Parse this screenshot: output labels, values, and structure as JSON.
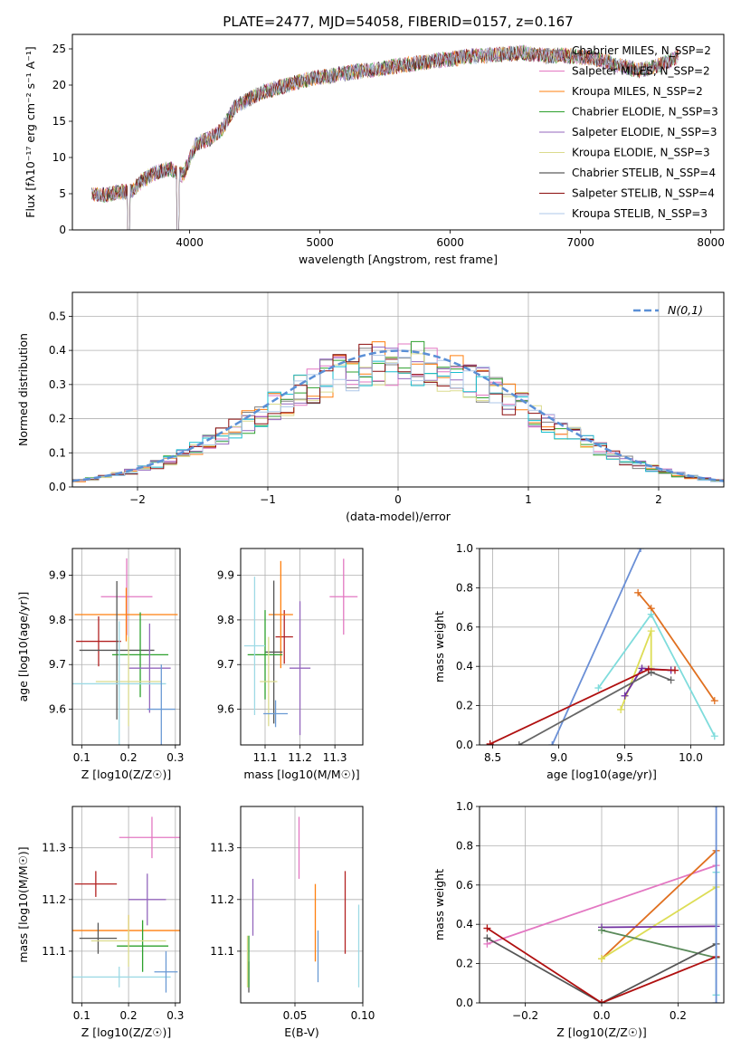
{
  "figure_title": "PLATE=2477, MJD=54058, FIBERID=0157, z=0.167",
  "model_colors": [
    "#808080",
    "#e377c2",
    "#ff7f0e",
    "#2ca02c",
    "#9467bd",
    "#dbdb8d",
    "#17becf",
    "#8c0c0c",
    "#aec7e8"
  ],
  "chart_data": [
    {
      "id": "spectrum",
      "type": "line",
      "xlabel": "wavelength [Angstrom, rest frame]",
      "ylabel": "Flux [fλ10⁻¹⁷ erg cm⁻² s⁻¹ A⁻¹]",
      "xlim": [
        3100,
        8100
      ],
      "ylim": [
        0,
        27
      ],
      "xticks": [
        "4000",
        "5000",
        "6000",
        "7000",
        "8000"
      ],
      "yticks": [
        "0",
        "5",
        "10",
        "15",
        "20",
        "25"
      ],
      "grid": false,
      "legend_position": "upper-right",
      "continuum": {
        "x": [
          3250,
          3350,
          3450,
          3550,
          3650,
          3750,
          3850,
          3950,
          4050,
          4150,
          4250,
          4350,
          4450,
          4550,
          4650,
          4750,
          4850,
          4950,
          5050,
          5150,
          5250,
          5350,
          5450,
          5550,
          5650,
          5750,
          5850,
          5950,
          6050,
          6150,
          6250,
          6350,
          6450,
          6550,
          6650,
          6750,
          6850,
          6950,
          7050,
          7150,
          7250,
          7350,
          7450,
          7550,
          7650,
          7750
        ],
        "y": [
          5,
          4.8,
          5.2,
          5.3,
          7,
          8,
          8.5,
          7.5,
          12,
          12.5,
          14,
          17,
          18,
          19,
          19.5,
          20,
          20.5,
          21,
          21.2,
          21.5,
          21.8,
          22,
          22.2,
          22.5,
          22.8,
          23,
          23.3,
          23.5,
          23.7,
          24,
          24,
          24.2,
          24.3,
          24.5,
          24.2,
          24,
          24.1,
          24,
          23.8,
          23.5,
          23,
          22.5,
          22,
          22.5,
          23,
          24
        ]
      },
      "series": [
        {
          "name": "Chabrier MILES, N_SSP=2",
          "color": "#808080"
        },
        {
          "name": "Salpeter MILES, N_SSP=2",
          "color": "#e377c2"
        },
        {
          "name": "Kroupa MILES, N_SSP=2",
          "color": "#ff7f0e"
        },
        {
          "name": "Chabrier ELODIE, N_SSP=3",
          "color": "#2ca02c"
        },
        {
          "name": "Salpeter ELODIE, N_SSP=3",
          "color": "#9467bd"
        },
        {
          "name": "Kroupa ELODIE, N_SSP=3",
          "color": "#dbdb8d"
        },
        {
          "name": "Chabrier STELIB, N_SSP=4",
          "color": "#333333"
        },
        {
          "name": "Salpeter STELIB, N_SSP=4",
          "color": "#8c0c0c"
        },
        {
          "name": "Kroupa STELIB, N_SSP=3",
          "color": "#aec7e8"
        }
      ]
    },
    {
      "id": "residuals",
      "type": "line",
      "xlabel": "(data-model)/error",
      "ylabel": "Normed distribution",
      "xlim": [
        -2.5,
        2.5
      ],
      "ylim": [
        0,
        0.57
      ],
      "xticks": [
        "−2",
        "−1",
        "0",
        "1",
        "2"
      ],
      "yticks": [
        "0.0",
        "0.1",
        "0.2",
        "0.3",
        "0.4",
        "0.5"
      ],
      "grid": true,
      "legend_position": "upper-right",
      "reference": {
        "name": "N(0,1)",
        "color": "#5a8fd6"
      },
      "bin_width": 0.1
    },
    {
      "id": "age-vs-Z",
      "type": "scatter",
      "xlabel": "Z [log10(Z/Z☉)]",
      "ylabel": "age  [log10(age/yr)]",
      "xlim": [
        0.08,
        0.31
      ],
      "ylim": [
        9.52,
        9.96
      ],
      "xticks": [
        "0.1",
        "0.2",
        "0.3"
      ],
      "yticks": [
        "9.6",
        "9.7",
        "9.8",
        "9.9"
      ],
      "grid": true,
      "points": [
        {
          "x": 0.136,
          "y": 9.752,
          "xerr": 0.048,
          "yerr": 0.056,
          "color": "#b22222"
        },
        {
          "x": 0.196,
          "y": 9.852,
          "xerr": 0.055,
          "yerr": 0.086,
          "color": "#e377c2"
        },
        {
          "x": 0.195,
          "y": 9.812,
          "xerr": 0.11,
          "yerr": 0.06,
          "color": "#ff7f0e"
        },
        {
          "x": 0.175,
          "y": 9.732,
          "xerr": 0.08,
          "yerr": 0.155,
          "color": "#555555"
        },
        {
          "x": 0.225,
          "y": 9.722,
          "xerr": 0.06,
          "yerr": 0.095,
          "color": "#2ca02c"
        },
        {
          "x": 0.245,
          "y": 9.692,
          "xerr": 0.045,
          "yerr": 0.1,
          "color": "#9467bd"
        },
        {
          "x": 0.2,
          "y": 9.662,
          "xerr": 0.07,
          "yerr": 0.1,
          "color": "#dbdb8d"
        },
        {
          "x": 0.18,
          "y": 9.657,
          "xerr": 0.1,
          "yerr": 0.14,
          "color": "#9edae5"
        },
        {
          "x": 0.27,
          "y": 9.6,
          "xerr": 0.03,
          "yerr": 0.1,
          "color": "#6a9ad4"
        }
      ]
    },
    {
      "id": "age-vs-mass",
      "type": "scatter",
      "xlabel": "mass [log10(M/M☉)]",
      "ylabel": "",
      "xlim": [
        11.03,
        11.38
      ],
      "ylim": [
        9.52,
        9.96
      ],
      "xticks": [
        "11.1",
        "11.2",
        "11.3"
      ],
      "yticks": [
        "9.6",
        "9.7",
        "9.8",
        "9.9"
      ],
      "grid": true,
      "points": [
        {
          "x": 11.155,
          "y": 9.762,
          "xerr": 0.025,
          "yerr": 0.06,
          "color": "#b22222"
        },
        {
          "x": 11.325,
          "y": 9.852,
          "xerr": 0.04,
          "yerr": 0.085,
          "color": "#e377c2"
        },
        {
          "x": 11.145,
          "y": 9.812,
          "xerr": 0.035,
          "yerr": 0.12,
          "color": "#ff7f0e"
        },
        {
          "x": 11.125,
          "y": 9.728,
          "xerr": 0.025,
          "yerr": 0.16,
          "color": "#555555"
        },
        {
          "x": 11.1,
          "y": 9.722,
          "xerr": 0.05,
          "yerr": 0.1,
          "color": "#2ca02c"
        },
        {
          "x": 11.2,
          "y": 9.692,
          "xerr": 0.03,
          "yerr": 0.15,
          "color": "#9467bd"
        },
        {
          "x": 11.11,
          "y": 9.662,
          "xerr": 0.025,
          "yerr": 0.1,
          "color": "#dbdb8d"
        },
        {
          "x": 11.07,
          "y": 9.742,
          "xerr": 0.03,
          "yerr": 0.155,
          "color": "#9edae5"
        },
        {
          "x": 11.13,
          "y": 9.59,
          "xerr": 0.035,
          "yerr": 0.03,
          "color": "#6a9ad4"
        }
      ]
    },
    {
      "id": "weight-vs-age",
      "type": "line",
      "xlabel": "age  [log10(age/yr)]",
      "ylabel": "mass weight",
      "xlim": [
        8.4,
        10.25
      ],
      "ylim": [
        0,
        1.0
      ],
      "xticks": [
        "8.5",
        "9.0",
        "9.5",
        "10.0"
      ],
      "yticks": [
        "0.0",
        "0.2",
        "0.4",
        "0.6",
        "0.8",
        "1.0"
      ],
      "grid": true,
      "series": [
        {
          "color": "#6a8fd6",
          "x": [
            8.95,
            9.62
          ],
          "y": [
            0.0,
            1.0
          ]
        },
        {
          "color": "#e07020",
          "x": [
            9.6,
            9.7,
            10.18
          ],
          "y": [
            0.775,
            0.695,
            0.225
          ]
        },
        {
          "color": "#7fdcdc",
          "x": [
            9.3,
            9.7,
            10.18
          ],
          "y": [
            0.29,
            0.665,
            0.045
          ]
        },
        {
          "color": "#dddd55",
          "x": [
            9.47,
            9.7,
            9.7
          ],
          "y": [
            0.18,
            0.58,
            0.39
          ]
        },
        {
          "color": "#7030a0",
          "x": [
            9.5,
            9.63,
            9.85
          ],
          "y": [
            0.25,
            0.39,
            0.38
          ]
        },
        {
          "color": "#666666",
          "x": [
            8.7,
            9.7,
            9.85
          ],
          "y": [
            0.0,
            0.37,
            0.33
          ]
        },
        {
          "color": "#b01010",
          "x": [
            8.48,
            9.68,
            9.88
          ],
          "y": [
            0.005,
            0.385,
            0.38
          ]
        }
      ]
    },
    {
      "id": "mass-vs-Z",
      "type": "scatter",
      "xlabel": "Z [log10(Z/Z☉)]",
      "ylabel": "mass [log10(M/M☉)]",
      "xlim": [
        0.08,
        0.31
      ],
      "ylim": [
        11.0,
        11.38
      ],
      "xticks": [
        "0.1",
        "0.2",
        "0.3"
      ],
      "yticks": [
        "11.1",
        "11.2",
        "11.3"
      ],
      "grid": true,
      "points": [
        {
          "x": 0.13,
          "y": 11.23,
          "xerr": 0.045,
          "yerr": 0.025,
          "color": "#b22222"
        },
        {
          "x": 0.25,
          "y": 11.32,
          "xerr": 0.07,
          "yerr": 0.04,
          "color": "#e377c2"
        },
        {
          "x": 0.2,
          "y": 11.14,
          "xerr": 0.12,
          "yerr": 0.03,
          "color": "#ff7f0e"
        },
        {
          "x": 0.135,
          "y": 11.125,
          "xerr": 0.04,
          "yerr": 0.03,
          "color": "#555555"
        },
        {
          "x": 0.23,
          "y": 11.11,
          "xerr": 0.055,
          "yerr": 0.05,
          "color": "#2ca02c"
        },
        {
          "x": 0.24,
          "y": 11.2,
          "xerr": 0.04,
          "yerr": 0.05,
          "color": "#9467bd"
        },
        {
          "x": 0.2,
          "y": 11.12,
          "xerr": 0.08,
          "yerr": 0.05,
          "color": "#dbdb8d"
        },
        {
          "x": 0.18,
          "y": 11.05,
          "xerr": 0.11,
          "yerr": 0.02,
          "color": "#9edae5"
        },
        {
          "x": 0.28,
          "y": 11.06,
          "xerr": 0.025,
          "yerr": 0.04,
          "color": "#6a9ad4"
        }
      ]
    },
    {
      "id": "mass-vs-ebv",
      "type": "scatter",
      "xlabel": "E(B-V)",
      "ylabel": "",
      "xlim": [
        0.01,
        0.1
      ],
      "ylim": [
        11.0,
        11.38
      ],
      "xticks": [
        "0.05",
        "0.10"
      ],
      "yticks": [
        "11.1",
        "11.2",
        "11.3"
      ],
      "grid": true,
      "points": [
        {
          "x": 0.087,
          "y": 11.175,
          "xerr": 0,
          "yerr": 0.08,
          "color": "#b22222"
        },
        {
          "x": 0.053,
          "y": 11.3,
          "xerr": 0,
          "yerr": 0.06,
          "color": "#e377c2"
        },
        {
          "x": 0.065,
          "y": 11.155,
          "xerr": 0,
          "yerr": 0.075,
          "color": "#ff7f0e"
        },
        {
          "x": 0.016,
          "y": 11.05,
          "xerr": 0,
          "yerr": 0.03,
          "color": "#555555"
        },
        {
          "x": 0.016,
          "y": 11.08,
          "xerr": 0,
          "yerr": 0.05,
          "color": "#2ca02c"
        },
        {
          "x": 0.019,
          "y": 11.185,
          "xerr": 0,
          "yerr": 0.055,
          "color": "#9467bd"
        },
        {
          "x": 0.015,
          "y": 11.08,
          "xerr": 0,
          "yerr": 0.05,
          "color": "#dbdb8d"
        },
        {
          "x": 0.097,
          "y": 11.11,
          "xerr": 0,
          "yerr": 0.08,
          "color": "#9edae5"
        },
        {
          "x": 0.067,
          "y": 11.09,
          "xerr": 0,
          "yerr": 0.05,
          "color": "#6a9ad4"
        }
      ]
    },
    {
      "id": "weight-vs-Z",
      "type": "line",
      "xlabel": "Z [log10(Z/Z☉)]",
      "ylabel": "mass weight",
      "xlim": [
        -0.32,
        0.32
      ],
      "ylim": [
        0,
        1.0
      ],
      "xticks": [
        "−0.2",
        "0.0",
        "0.2"
      ],
      "yticks": [
        "0.0",
        "0.2",
        "0.4",
        "0.6",
        "0.8",
        "1.0"
      ],
      "grid": true,
      "series": [
        {
          "color": "#e377c2",
          "x": [
            -0.3,
            0.3
          ],
          "y": [
            0.3,
            0.7
          ]
        },
        {
          "color": "#e07020",
          "x": [
            0.0,
            0.3
          ],
          "y": [
            0.225,
            0.775
          ]
        },
        {
          "color": "#dddd55",
          "x": [
            0.0,
            0.3
          ],
          "y": [
            0.225,
            0.59
          ]
        },
        {
          "color": "#7030a0",
          "x": [
            0.0,
            0.3
          ],
          "y": [
            0.385,
            0.39
          ]
        },
        {
          "color": "#5a8a5a",
          "x": [
            0.0,
            0.3
          ],
          "y": [
            0.37,
            0.23
          ]
        },
        {
          "color": "#555555",
          "x": [
            -0.3,
            0.0,
            0.3
          ],
          "y": [
            0.33,
            0.0,
            0.3
          ]
        },
        {
          "color": "#b01010",
          "x": [
            -0.3,
            0.0,
            0.3
          ],
          "y": [
            0.38,
            0.0,
            0.235
          ]
        },
        {
          "color": "#7fdcdc",
          "x": [
            0.3,
            0.3
          ],
          "y": [
            0.04,
            0.665
          ]
        },
        {
          "color": "#6a8fd6",
          "x": [
            0.3,
            0.3
          ],
          "y": [
            0.0,
            1.0
          ]
        }
      ]
    }
  ]
}
